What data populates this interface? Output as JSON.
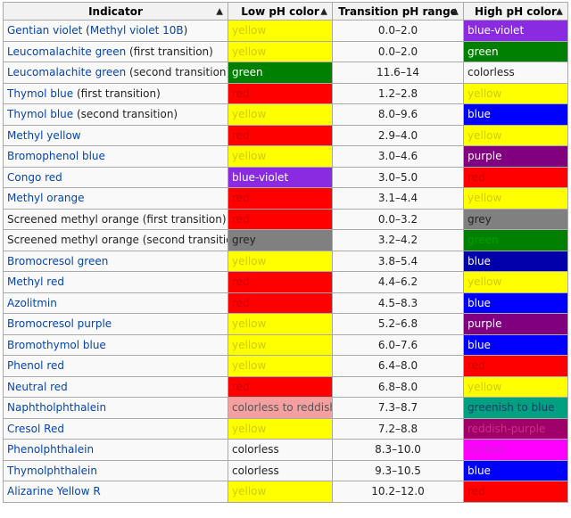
{
  "headers": [
    "Indicator",
    "Low pH color",
    "Transition pH range",
    "High pH color"
  ],
  "rows": [
    {
      "name": [
        {
          "t": "Gentian violet",
          "link": true
        },
        {
          "t": " (",
          "link": false
        },
        {
          "t": "Methyl violet 10B",
          "link": true
        },
        {
          "t": ")",
          "link": false
        }
      ],
      "low": {
        "text": "yellow",
        "bg": "#ffff00",
        "fg": "#cccc00"
      },
      "range": "0.0–2.0",
      "high": {
        "text": "blue-violet",
        "bg": "#8a2be2",
        "fg": "#ffffff"
      }
    },
    {
      "name": [
        {
          "t": "Leucomalachite green",
          "link": true
        },
        {
          "t": " (first transition)",
          "link": false
        }
      ],
      "low": {
        "text": "yellow",
        "bg": "#ffff00",
        "fg": "#cccc00"
      },
      "range": "0.0–2.0",
      "high": {
        "text": "green",
        "bg": "#008000",
        "fg": "#ffffff"
      }
    },
    {
      "name": [
        {
          "t": "Leucomalachite green",
          "link": true
        },
        {
          "t": " (second transition)",
          "link": false
        }
      ],
      "low": {
        "text": "green",
        "bg": "#008000",
        "fg": "#ffffff"
      },
      "range": "11.6–14",
      "high": {
        "text": "colorless",
        "bg": "#f9f9f9",
        "fg": "#222222"
      }
    },
    {
      "name": [
        {
          "t": "Thymol blue",
          "link": true
        },
        {
          "t": " (first transition)",
          "link": false
        }
      ],
      "low": {
        "text": "red",
        "bg": "#ff0000",
        "fg": "#cc0000"
      },
      "range": "1.2–2.8",
      "high": {
        "text": "yellow",
        "bg": "#ffff00",
        "fg": "#cccc00"
      }
    },
    {
      "name": [
        {
          "t": "Thymol blue",
          "link": true
        },
        {
          "t": " (second transition)",
          "link": false
        }
      ],
      "low": {
        "text": "yellow",
        "bg": "#ffff00",
        "fg": "#cccc00"
      },
      "range": "8.0–9.6",
      "high": {
        "text": "blue",
        "bg": "#0000ff",
        "fg": "#ffffff"
      }
    },
    {
      "name": [
        {
          "t": "Methyl yellow",
          "link": true
        }
      ],
      "low": {
        "text": "red",
        "bg": "#ff0000",
        "fg": "#cc0000"
      },
      "range": "2.9–4.0",
      "high": {
        "text": "yellow",
        "bg": "#ffff00",
        "fg": "#cccc00"
      }
    },
    {
      "name": [
        {
          "t": "Bromophenol blue",
          "link": true
        }
      ],
      "low": {
        "text": "yellow",
        "bg": "#ffff00",
        "fg": "#cccc00"
      },
      "range": "3.0–4.6",
      "high": {
        "text": "purple",
        "bg": "#800080",
        "fg": "#ffffff"
      }
    },
    {
      "name": [
        {
          "t": "Congo red",
          "link": true
        }
      ],
      "low": {
        "text": "blue-violet",
        "bg": "#8a2be2",
        "fg": "#ffffff"
      },
      "range": "3.0–5.0",
      "high": {
        "text": "red",
        "bg": "#ff0000",
        "fg": "#cc0000"
      }
    },
    {
      "name": [
        {
          "t": "Methyl orange",
          "link": true
        }
      ],
      "low": {
        "text": "red",
        "bg": "#ff0000",
        "fg": "#cc0000"
      },
      "range": "3.1–4.4",
      "high": {
        "text": "yellow",
        "bg": "#ffff00",
        "fg": "#cccc00"
      }
    },
    {
      "name": [
        {
          "t": "Screened methyl orange",
          "link": false
        },
        {
          "t": " (first transition)",
          "link": false
        }
      ],
      "low": {
        "text": "red",
        "bg": "#ff0000",
        "fg": "#cc0000"
      },
      "range": "0.0–3.2",
      "high": {
        "text": "grey",
        "bg": "#808080",
        "fg": "#222222"
      }
    },
    {
      "name": [
        {
          "t": "Screened methyl orange",
          "link": false
        },
        {
          "t": " (second transition)",
          "link": false
        }
      ],
      "low": {
        "text": "grey",
        "bg": "#808080",
        "fg": "#222222"
      },
      "range": "3.2–4.2",
      "high": {
        "text": "green",
        "bg": "#008000",
        "fg": "#00a000"
      }
    },
    {
      "name": [
        {
          "t": "Bromocresol green",
          "link": true
        }
      ],
      "low": {
        "text": "yellow",
        "bg": "#ffff00",
        "fg": "#cccc00"
      },
      "range": "3.8–5.4",
      "high": {
        "text": "blue",
        "bg": "#0000aa",
        "fg": "#ffffff"
      }
    },
    {
      "name": [
        {
          "t": "Methyl red",
          "link": true
        }
      ],
      "low": {
        "text": "red",
        "bg": "#ff0000",
        "fg": "#cc0000"
      },
      "range": "4.4–6.2",
      "high": {
        "text": "yellow",
        "bg": "#ffff00",
        "fg": "#cccc00"
      }
    },
    {
      "name": [
        {
          "t": "Azolitmin",
          "link": true
        }
      ],
      "low": {
        "text": "red",
        "bg": "#ff0000",
        "fg": "#cc0000"
      },
      "range": "4.5–8.3",
      "high": {
        "text": "blue",
        "bg": "#0000ff",
        "fg": "#ffffff"
      }
    },
    {
      "name": [
        {
          "t": "Bromocresol purple",
          "link": true
        }
      ],
      "low": {
        "text": "yellow",
        "bg": "#ffff00",
        "fg": "#cccc00"
      },
      "range": "5.2–6.8",
      "high": {
        "text": "purple",
        "bg": "#800080",
        "fg": "#ffffff"
      }
    },
    {
      "name": [
        {
          "t": "Bromothymol blue",
          "link": true
        }
      ],
      "low": {
        "text": "yellow",
        "bg": "#ffff00",
        "fg": "#cccc00"
      },
      "range": "6.0–7.6",
      "high": {
        "text": "blue",
        "bg": "#0000ff",
        "fg": "#ffffff"
      }
    },
    {
      "name": [
        {
          "t": "Phenol red",
          "link": true
        }
      ],
      "low": {
        "text": "yellow",
        "bg": "#ffff00",
        "fg": "#cccc00"
      },
      "range": "6.4–8.0",
      "high": {
        "text": "red",
        "bg": "#ff0000",
        "fg": "#cc0000"
      }
    },
    {
      "name": [
        {
          "t": "Neutral red",
          "link": true
        }
      ],
      "low": {
        "text": "red",
        "bg": "#ff0000",
        "fg": "#cc0000"
      },
      "range": "6.8–8.0",
      "high": {
        "text": "yellow",
        "bg": "#ffff00",
        "fg": "#cccc00"
      }
    },
    {
      "name": [
        {
          "t": "Naphtholphthalein",
          "link": true
        }
      ],
      "low": {
        "text": "colorless to reddish",
        "bg": "#f4a0a0",
        "fg": "#555555"
      },
      "range": "7.3–8.7",
      "high": {
        "text": "greenish to blue",
        "bg": "#00a080",
        "fg": "#1a3a6a"
      }
    },
    {
      "name": [
        {
          "t": "Cresol Red",
          "link": true
        }
      ],
      "low": {
        "text": "yellow",
        "bg": "#ffff00",
        "fg": "#cccc00"
      },
      "range": "7.2–8.8",
      "high": {
        "text": "reddish-purple",
        "bg": "#a0006a",
        "fg": "#cc3080"
      }
    },
    {
      "name": [
        {
          "t": "Phenolphthalein",
          "link": true
        }
      ],
      "low": {
        "text": "colorless",
        "bg": "#f9f9f9",
        "fg": "#222222"
      },
      "range": "8.3–10.0",
      "high": {
        "text": "fuchsia",
        "bg": "#ff00ff",
        "fg": "#cc22cc"
      }
    },
    {
      "name": [
        {
          "t": "Thymolphthalein",
          "link": true
        }
      ],
      "low": {
        "text": "colorless",
        "bg": "#f9f9f9",
        "fg": "#222222"
      },
      "range": "9.3–10.5",
      "high": {
        "text": "blue",
        "bg": "#0000ff",
        "fg": "#ffffff"
      }
    },
    {
      "name": [
        {
          "t": "Alizarine Yellow R",
          "link": true
        }
      ],
      "low": {
        "text": "yellow",
        "bg": "#ffff00",
        "fg": "#cccc00"
      },
      "range": "10.2–12.0",
      "high": {
        "text": "red",
        "bg": "#ff0000",
        "fg": "#cc0000"
      }
    }
  ],
  "sort_icon": "sort-updown-icon"
}
